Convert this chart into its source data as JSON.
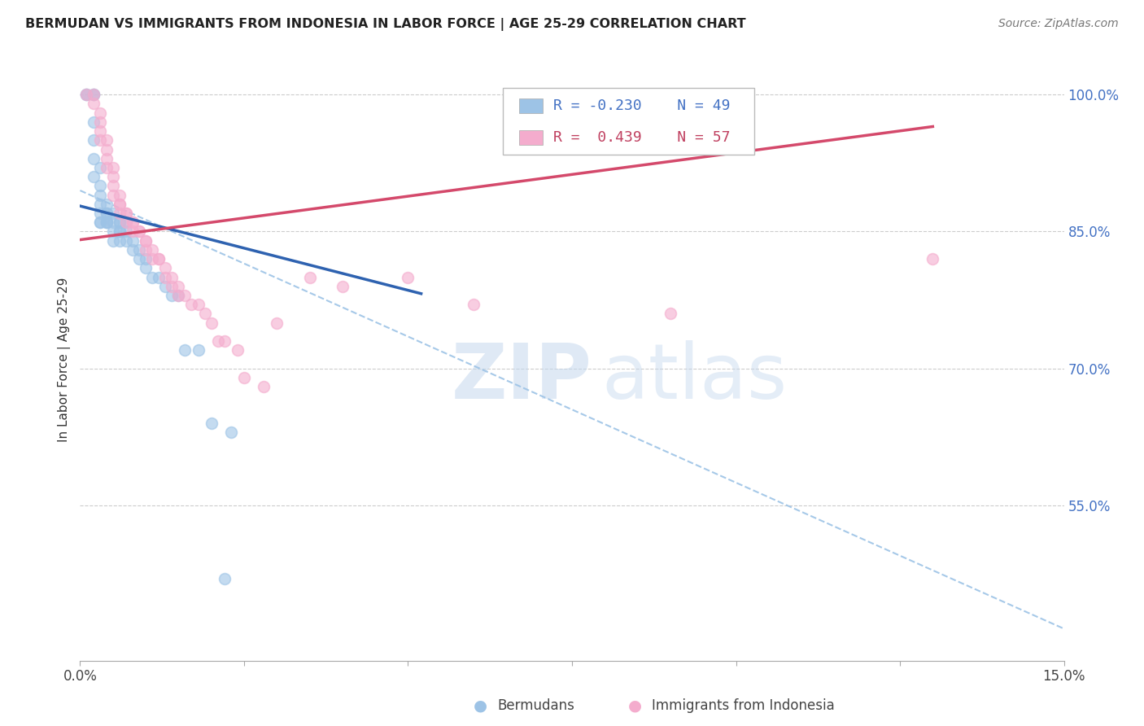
{
  "title": "BERMUDAN VS IMMIGRANTS FROM INDONESIA IN LABOR FORCE | AGE 25-29 CORRELATION CHART",
  "source": "Source: ZipAtlas.com",
  "ylabel": "In Labor Force | Age 25-29",
  "ytick_labels": [
    "100.0%",
    "85.0%",
    "70.0%",
    "55.0%"
  ],
  "ytick_values": [
    1.0,
    0.85,
    0.7,
    0.55
  ],
  "xlim": [
    0.0,
    0.15
  ],
  "ylim": [
    0.38,
    1.04
  ],
  "legend_blue_r": "-0.230",
  "legend_blue_n": "49",
  "legend_pink_r": "0.439",
  "legend_pink_n": "57",
  "blue_scatter_x": [
    0.001,
    0.001,
    0.002,
    0.002,
    0.002,
    0.002,
    0.002,
    0.003,
    0.003,
    0.003,
    0.003,
    0.003,
    0.003,
    0.003,
    0.004,
    0.004,
    0.004,
    0.004,
    0.004,
    0.004,
    0.005,
    0.005,
    0.005,
    0.005,
    0.006,
    0.006,
    0.006,
    0.006,
    0.006,
    0.007,
    0.007,
    0.007,
    0.008,
    0.008,
    0.009,
    0.009,
    0.01,
    0.01,
    0.011,
    0.012,
    0.013,
    0.014,
    0.015,
    0.016,
    0.018,
    0.02,
    0.023,
    0.002,
    0.022
  ],
  "blue_scatter_y": [
    1.0,
    1.0,
    1.0,
    1.0,
    0.97,
    0.93,
    0.91,
    0.92,
    0.9,
    0.89,
    0.88,
    0.87,
    0.86,
    0.86,
    0.88,
    0.87,
    0.87,
    0.86,
    0.86,
    0.86,
    0.87,
    0.86,
    0.85,
    0.84,
    0.86,
    0.86,
    0.85,
    0.85,
    0.84,
    0.86,
    0.85,
    0.84,
    0.84,
    0.83,
    0.83,
    0.82,
    0.82,
    0.81,
    0.8,
    0.8,
    0.79,
    0.78,
    0.78,
    0.72,
    0.72,
    0.64,
    0.63,
    0.95,
    0.47
  ],
  "pink_scatter_x": [
    0.001,
    0.002,
    0.002,
    0.003,
    0.003,
    0.003,
    0.003,
    0.004,
    0.004,
    0.004,
    0.004,
    0.005,
    0.005,
    0.005,
    0.005,
    0.006,
    0.006,
    0.006,
    0.006,
    0.007,
    0.007,
    0.007,
    0.008,
    0.008,
    0.008,
    0.009,
    0.009,
    0.01,
    0.01,
    0.01,
    0.011,
    0.011,
    0.012,
    0.012,
    0.013,
    0.013,
    0.014,
    0.014,
    0.015,
    0.015,
    0.016,
    0.017,
    0.018,
    0.019,
    0.02,
    0.021,
    0.022,
    0.024,
    0.025,
    0.028,
    0.03,
    0.035,
    0.04,
    0.05,
    0.06,
    0.09,
    0.13
  ],
  "pink_scatter_y": [
    1.0,
    1.0,
    0.99,
    0.98,
    0.97,
    0.96,
    0.95,
    0.95,
    0.94,
    0.93,
    0.92,
    0.92,
    0.91,
    0.9,
    0.89,
    0.89,
    0.88,
    0.88,
    0.87,
    0.87,
    0.87,
    0.86,
    0.86,
    0.86,
    0.85,
    0.85,
    0.85,
    0.84,
    0.84,
    0.83,
    0.83,
    0.82,
    0.82,
    0.82,
    0.81,
    0.8,
    0.8,
    0.79,
    0.79,
    0.78,
    0.78,
    0.77,
    0.77,
    0.76,
    0.75,
    0.73,
    0.73,
    0.72,
    0.69,
    0.68,
    0.75,
    0.8,
    0.79,
    0.8,
    0.77,
    0.76,
    0.82
  ],
  "blue_color": "#9dc3e6",
  "pink_color": "#f4accd",
  "blue_line_color": "#2e62b0",
  "pink_line_color": "#d4496b",
  "dashed_line_color": "#9dc3e6",
  "blue_trend_x0": 0.0,
  "blue_trend_y0": 0.878,
  "blue_trend_x1": 0.052,
  "blue_trend_y1": 0.782,
  "pink_trend_x0": 0.0,
  "pink_trend_y0": 0.841,
  "pink_trend_x1": 0.13,
  "pink_trend_y1": 0.965,
  "dashed_trend_x0": 0.0,
  "dashed_trend_y0": 0.895,
  "dashed_trend_x1": 0.15,
  "dashed_trend_y1": 0.415,
  "watermark_zip": "ZIP",
  "watermark_atlas": "atlas",
  "background_color": "#ffffff",
  "grid_color": "#cccccc"
}
